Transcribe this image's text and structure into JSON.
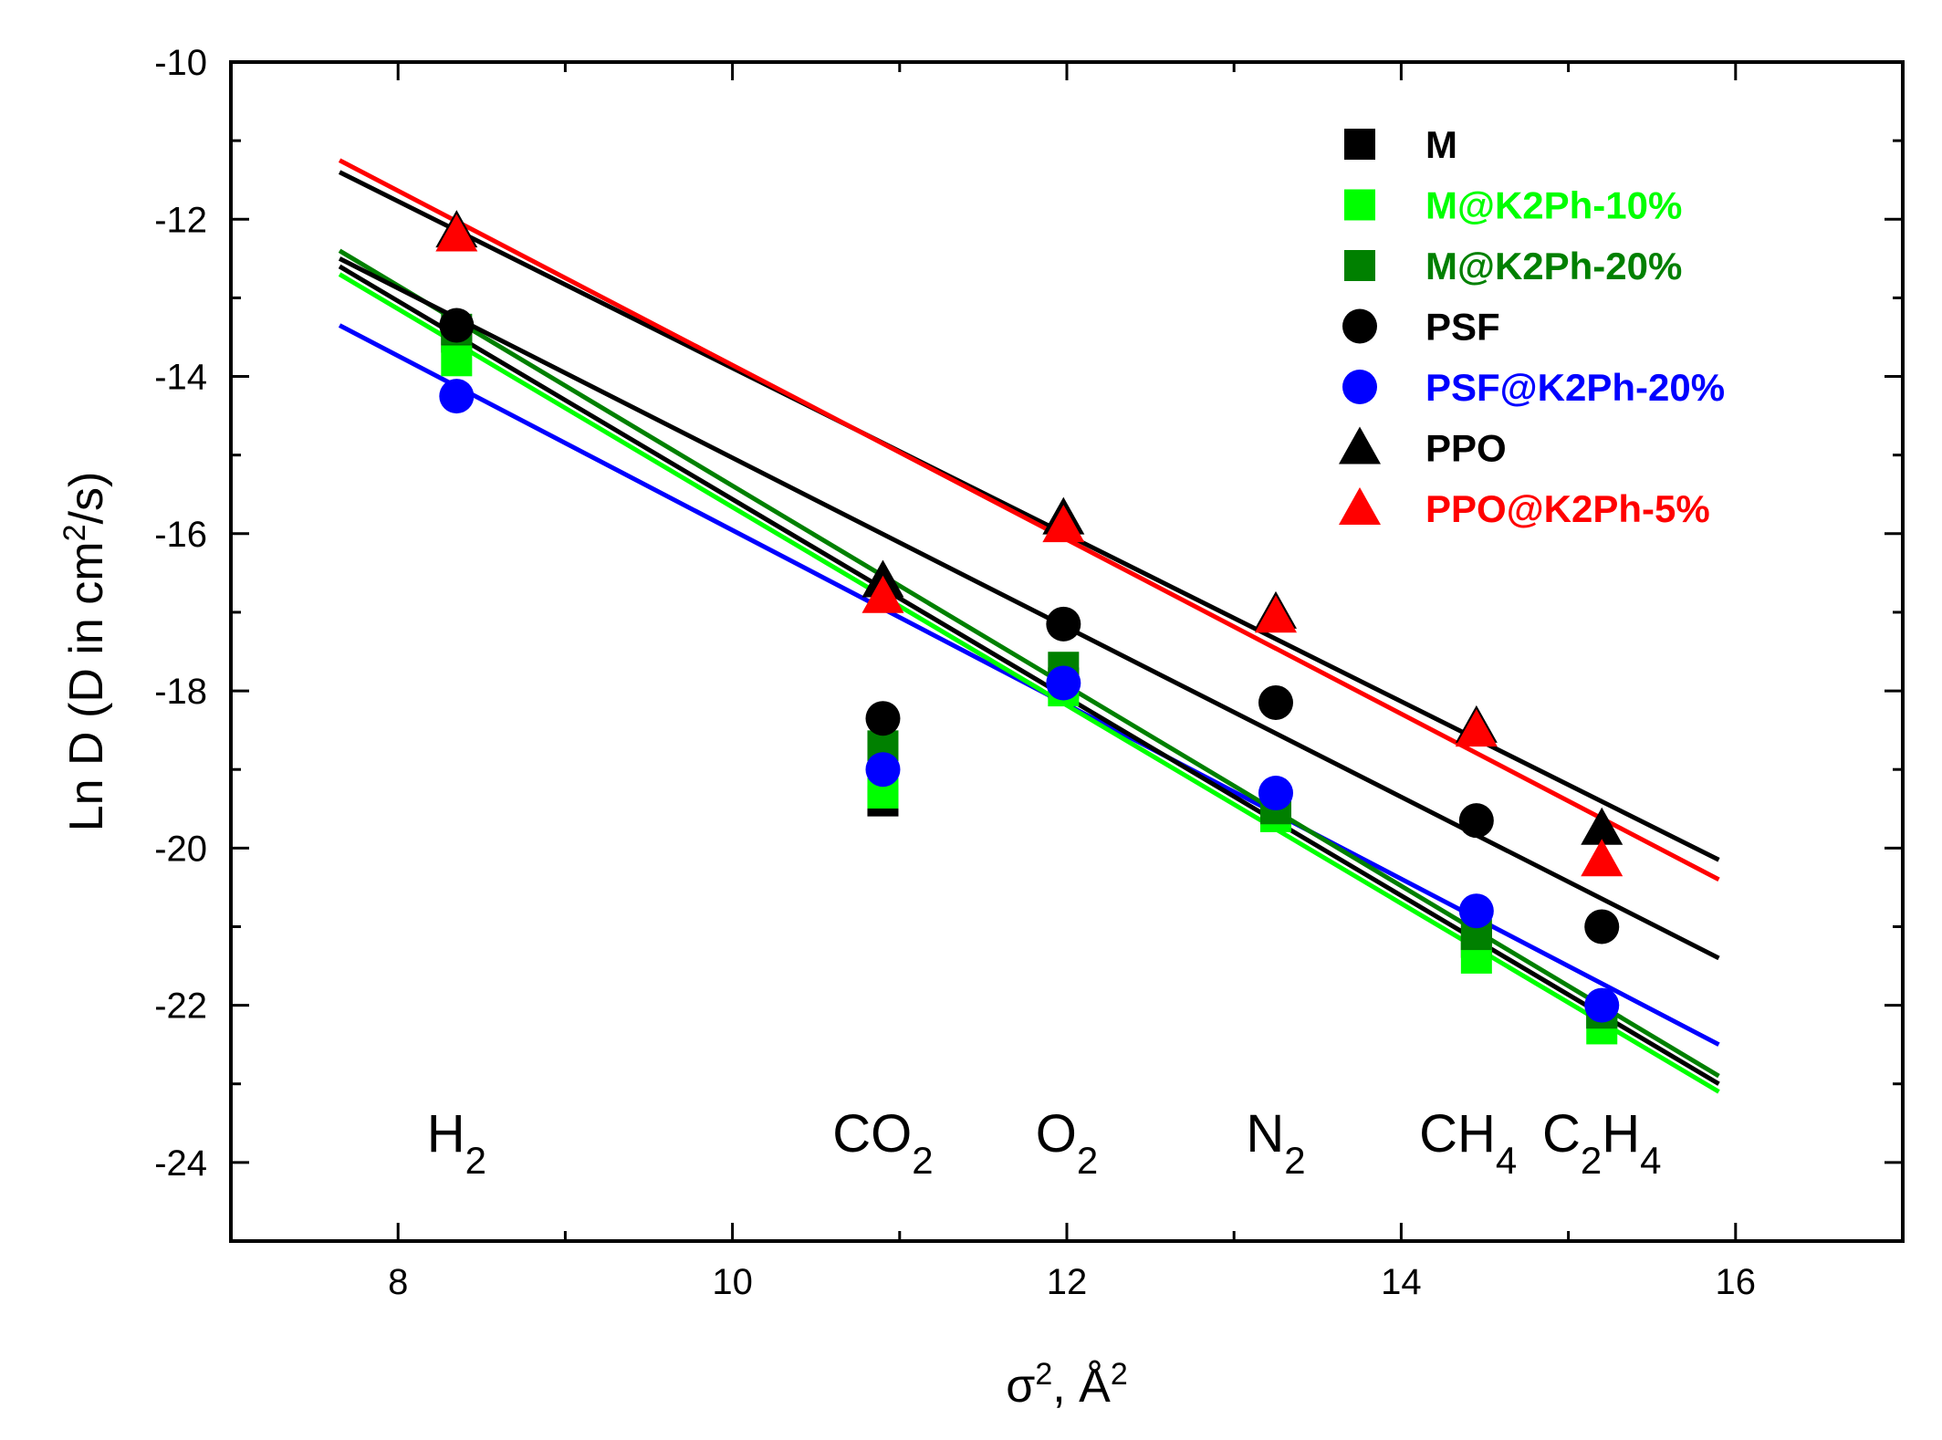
{
  "chart_data": {
    "type": "scatter",
    "title": "",
    "xlabel": {
      "symbol": "σ",
      "sup1": "2",
      "mid": ", Å",
      "sup2": "2"
    },
    "ylabel": {
      "pre": "Ln D (D in cm",
      "sup": "2",
      "post": "/s)"
    },
    "xlim": [
      7,
      17
    ],
    "ylim": [
      -25,
      -10
    ],
    "xticks": [
      8,
      10,
      12,
      14,
      16
    ],
    "xtick_labels": [
      "8",
      "10",
      "12",
      "14",
      "16"
    ],
    "yticks": [
      -10,
      -12,
      -14,
      -16,
      -18,
      -20,
      -22,
      -24
    ],
    "ytick_labels": [
      "-10",
      "-12",
      "-14",
      "-16",
      "-18",
      "-20",
      "-22",
      "-24"
    ],
    "gas_labels": [
      {
        "x": 8.35,
        "base": "H",
        "sub": "2"
      },
      {
        "x": 10.9,
        "base": "CO",
        "sub": "2"
      },
      {
        "x": 12.0,
        "base": "O",
        "sub": "2"
      },
      {
        "x": 13.25,
        "base": "N",
        "sub": "2"
      },
      {
        "x": 14.4,
        "base": "CH",
        "sub": "4"
      },
      {
        "x": 15.2,
        "parts": [
          [
            "C",
            "2"
          ],
          [
            "H",
            "4"
          ]
        ]
      }
    ],
    "series": [
      {
        "name": "M",
        "marker": "square",
        "color": "#000000",
        "x": [
          8.35,
          10.9,
          11.98,
          13.25,
          14.45,
          15.2
        ],
        "y": [
          -13.5,
          -19.4,
          -17.9,
          -19.5,
          -21.2,
          -22.1
        ],
        "fit": {
          "x": [
            7.65,
            15.9
          ],
          "y": [
            -12.6,
            -23.0
          ]
        }
      },
      {
        "name": "M@K2Ph-10%",
        "marker": "square",
        "color": "#00ff00",
        "x": [
          8.35,
          10.9,
          11.98,
          13.25,
          14.45,
          15.2
        ],
        "y": [
          -13.8,
          -19.3,
          -18.0,
          -19.6,
          -21.4,
          -22.3
        ],
        "fit": {
          "x": [
            7.65,
            15.9
          ],
          "y": [
            -12.7,
            -23.1
          ]
        }
      },
      {
        "name": "M@K2Ph-20%",
        "marker": "square",
        "color": "#008000",
        "x": [
          8.35,
          10.9,
          11.98,
          13.25,
          14.45,
          15.2
        ],
        "y": [
          -13.4,
          -18.7,
          -17.7,
          -19.5,
          -21.1,
          -22.1
        ],
        "fit": {
          "x": [
            7.65,
            15.9
          ],
          "y": [
            -12.4,
            -22.9
          ]
        }
      },
      {
        "name": "PSF",
        "marker": "circle",
        "color": "#000000",
        "x": [
          8.35,
          10.9,
          11.98,
          13.25,
          14.45,
          15.2
        ],
        "y": [
          -13.35,
          -18.35,
          -17.15,
          -18.15,
          -19.65,
          -21.0
        ],
        "fit": {
          "x": [
            7.65,
            15.9
          ],
          "y": [
            -12.5,
            -21.4
          ]
        }
      },
      {
        "name": "PSF@K2Ph-20%",
        "marker": "circle",
        "color": "#0000ff",
        "x": [
          8.35,
          10.9,
          11.98,
          13.25,
          14.45,
          15.2
        ],
        "y": [
          -14.25,
          -19.0,
          -17.9,
          -19.3,
          -20.8,
          -22.0
        ],
        "fit": {
          "x": [
            7.65,
            15.9
          ],
          "y": [
            -13.35,
            -22.5
          ]
        }
      },
      {
        "name": "PPO",
        "marker": "triangle",
        "color": "#000000",
        "x": [
          8.35,
          10.9,
          11.98,
          13.25,
          14.45,
          15.2
        ],
        "y": [
          -12.15,
          -16.6,
          -15.8,
          -17.0,
          -18.45,
          -19.75
        ],
        "fit": {
          "x": [
            7.65,
            15.9
          ],
          "y": [
            -11.4,
            -20.15
          ]
        }
      },
      {
        "name": "PPO@K2Ph-5%",
        "marker": "triangle",
        "color": "#ff0000",
        "x": [
          8.35,
          10.9,
          11.98,
          13.25,
          14.45,
          15.2
        ],
        "y": [
          -12.2,
          -16.8,
          -15.9,
          -17.05,
          -18.5,
          -20.15
        ],
        "fit": {
          "x": [
            7.65,
            15.9
          ],
          "y": [
            -11.25,
            -20.4
          ]
        }
      }
    ],
    "legend_order": [
      0,
      1,
      2,
      3,
      4,
      5,
      6
    ],
    "legend_position": "top-right",
    "grid": false
  }
}
